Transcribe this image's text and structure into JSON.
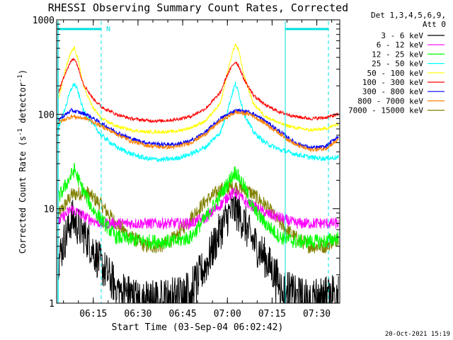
{
  "chart_data": {
    "type": "line",
    "title": "RHESSI Observing Summary Count Rates, Corrected",
    "xlabel": "Start Time (03-Sep-04 06:02:42)",
    "ylabel_main": "Corrected Count Rate (s",
    "ylabel_sup1": "-1",
    "ylabel_mid": " detector",
    "ylabel_sup2": "-1",
    "ylabel_end": ")",
    "yscale": "log",
    "ylim": [
      1,
      1000
    ],
    "xlim_minutes": [
      0,
      95
    ],
    "xticks": [
      "06:15",
      "06:30",
      "06:45",
      "07:00",
      "07:15",
      "07:30"
    ],
    "yticks": [
      "1",
      "10",
      "100",
      "1000"
    ],
    "legend_header": [
      "Det 1,3,4,5,6,9,",
      "Att 0"
    ],
    "legend_position": "right",
    "flag_label": "N",
    "footer": "20-Oct-2021 15:19",
    "series": [
      {
        "name": "3 - 6 keV",
        "color": "#000000",
        "x": [
          0,
          5,
          10,
          15,
          20,
          25,
          30,
          35,
          40,
          45,
          50,
          55,
          58,
          60,
          63,
          65,
          70,
          75,
          80,
          85,
          90,
          95
        ],
        "values": [
          2.5,
          8,
          5,
          2.5,
          1.5,
          1.2,
          1.1,
          1.1,
          1.2,
          1.4,
          2.5,
          6,
          9,
          10,
          7,
          5,
          3,
          1.6,
          1.2,
          1.1,
          1.2,
          1.5
        ]
      },
      {
        "name": "6 - 12 keV",
        "color": "#ff00ff",
        "x": [
          0,
          5,
          10,
          15,
          20,
          30,
          40,
          45,
          50,
          55,
          58,
          60,
          63,
          65,
          70,
          75,
          80,
          85,
          90,
          95
        ],
        "values": [
          7,
          10,
          8,
          7,
          7,
          7,
          7,
          7,
          8,
          11,
          14,
          15,
          12,
          11,
          9,
          8,
          7,
          7,
          7,
          7
        ]
      },
      {
        "name": "12 - 25 keV",
        "color": "#00ff00",
        "x": [
          0,
          4,
          6,
          8,
          12,
          16,
          20,
          30,
          40,
          45,
          50,
          55,
          58,
          60,
          63,
          66,
          70,
          75,
          80,
          85,
          90,
          95
        ],
        "values": [
          12,
          20,
          26,
          18,
          10,
          7,
          5,
          4.5,
          4.5,
          5,
          8,
          14,
          20,
          25,
          17,
          10,
          7,
          5,
          4.5,
          4.5,
          4.5,
          5
        ]
      },
      {
        "name": "25 - 50 keV",
        "color": "#00ffff",
        "x": [
          0,
          3,
          5,
          6,
          7,
          9,
          12,
          15,
          20,
          25,
          30,
          35,
          40,
          45,
          50,
          55,
          57,
          59,
          60,
          61,
          63,
          66,
          70,
          75,
          80,
          85,
          90,
          95
        ],
        "values": [
          60,
          120,
          190,
          210,
          180,
          110,
          80,
          60,
          45,
          38,
          34,
          33,
          34,
          38,
          45,
          65,
          100,
          170,
          210,
          170,
          100,
          65,
          50,
          42,
          38,
          35,
          34,
          35
        ]
      },
      {
        "name": "50 - 100 keV",
        "color": "#ffff00",
        "x": [
          0,
          3,
          5,
          6,
          7,
          9,
          12,
          15,
          20,
          25,
          30,
          35,
          40,
          45,
          50,
          55,
          57,
          59,
          60,
          61,
          63,
          66,
          70,
          75,
          80,
          85,
          90,
          95
        ],
        "values": [
          120,
          300,
          470,
          500,
          400,
          200,
          120,
          90,
          75,
          68,
          65,
          65,
          66,
          72,
          85,
          130,
          250,
          450,
          550,
          480,
          250,
          130,
          95,
          80,
          72,
          68,
          70,
          80
        ]
      },
      {
        "name": "100 - 300 keV",
        "color": "#ff0000",
        "x": [
          0,
          3,
          5,
          6,
          7,
          9,
          12,
          15,
          20,
          25,
          30,
          35,
          40,
          45,
          50,
          55,
          57,
          59,
          60,
          61,
          63,
          66,
          70,
          75,
          80,
          85,
          90,
          95
        ],
        "values": [
          150,
          280,
          370,
          390,
          330,
          210,
          150,
          120,
          100,
          90,
          86,
          85,
          88,
          95,
          115,
          170,
          250,
          330,
          360,
          330,
          230,
          160,
          125,
          105,
          95,
          90,
          92,
          100
        ]
      },
      {
        "name": "300 - 800 keV",
        "color": "#0000ff",
        "x": [
          0,
          5,
          10,
          15,
          20,
          25,
          30,
          35,
          40,
          45,
          50,
          55,
          60,
          65,
          70,
          75,
          80,
          85,
          90,
          95
        ],
        "values": [
          85,
          110,
          100,
          80,
          65,
          55,
          50,
          48,
          48,
          52,
          65,
          90,
          110,
          105,
          85,
          65,
          50,
          44,
          45,
          60
        ]
      },
      {
        "name": "800 - 7000 keV",
        "color": "#ff8000",
        "x": [
          0,
          5,
          10,
          15,
          20,
          25,
          30,
          35,
          40,
          45,
          50,
          55,
          60,
          65,
          70,
          75,
          80,
          85,
          90,
          95
        ],
        "values": [
          80,
          95,
          90,
          75,
          62,
          52,
          47,
          45,
          45,
          50,
          62,
          85,
          105,
          100,
          80,
          62,
          48,
          42,
          43,
          55
        ]
      },
      {
        "name": "7000 - 15000 keV",
        "color": "#808000",
        "x": [
          0,
          5,
          10,
          15,
          20,
          25,
          30,
          35,
          40,
          45,
          50,
          55,
          60,
          65,
          70,
          75,
          80,
          85,
          90,
          95
        ],
        "values": [
          8,
          14,
          15,
          11,
          7,
          5,
          4,
          4,
          5,
          8,
          12,
          16,
          17,
          15,
          11,
          7,
          5,
          4,
          4,
          5
        ]
      }
    ]
  }
}
